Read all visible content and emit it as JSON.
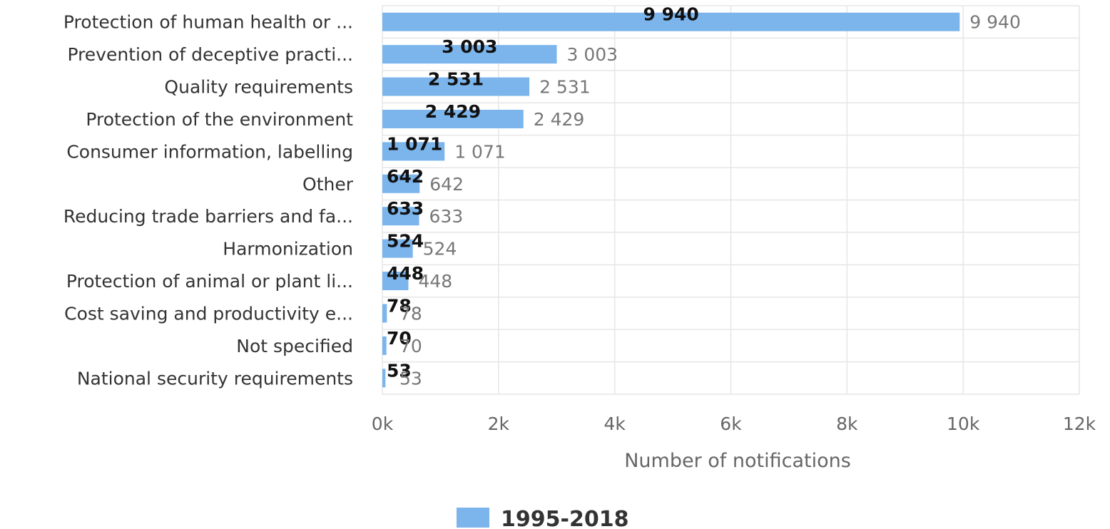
{
  "chart_data": {
    "type": "bar",
    "orientation": "horizontal",
    "categories": [
      "Protection of human health or ...",
      "Prevention of deceptive practi...",
      "Quality requirements",
      "Protection of the environment",
      "Consumer information, labelling",
      "Other",
      "Reducing trade barriers and fa...",
      "Harmonization",
      "Protection of animal or plant li...",
      "Cost saving and productivity e...",
      "Not specified",
      "National security requirements"
    ],
    "series": [
      {
        "name": "1995-2018",
        "color": "#7cb5ec",
        "values": [
          9940,
          3003,
          2531,
          2429,
          1071,
          642,
          633,
          524,
          448,
          78,
          70,
          53
        ],
        "labels": [
          "9 940",
          "3 003",
          "2 531",
          "2 429",
          "1 071",
          "642",
          "633",
          "524",
          "448",
          "78",
          "70",
          "53"
        ]
      }
    ],
    "xlabel": "Number of notifications",
    "xlim": [
      0,
      12000
    ],
    "xticks": [
      0,
      2000,
      4000,
      6000,
      8000,
      10000,
      12000
    ],
    "xtick_labels": [
      "0k",
      "2k",
      "4k",
      "6k",
      "8k",
      "10k",
      "12k"
    ],
    "grid": true,
    "legend": {
      "position": "bottom-center",
      "entries": [
        "1995-2018"
      ]
    }
  }
}
